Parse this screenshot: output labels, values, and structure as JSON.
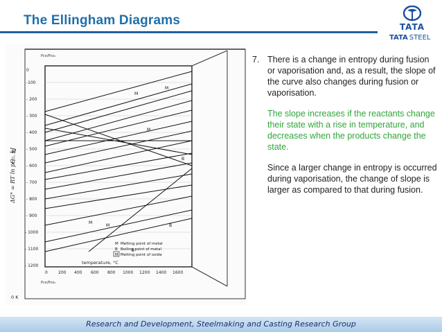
{
  "slide": {
    "title": "The Ellingham Diagrams",
    "footer": "Research and Development, Steelmaking and Casting Research Group"
  },
  "logo": {
    "word_top": "TATA",
    "word_bottom_1": "TATA",
    "word_bottom_2": "STEEL"
  },
  "point": {
    "number": "7.",
    "text": "There is a change in entropy during fusion or vaporisation and, as a result, the slope of the curve also changes during fusion or vaporisation."
  },
  "green_paragraph": "The slope increases if the reactants change their state with a rise in temperature, and decreases when the products change the state.",
  "dark_paragraph": "Since a larger change in entropy is occurred during vaporisation, the change of slope is larger as compared to that during fusion.",
  "diagram": {
    "y_axis_label": "ΔG° = RT ln pO₂, kJ",
    "x_axis_label": "temperature, °C",
    "left_marks": [
      "H",
      "C"
    ],
    "zero_k": "0 K",
    "top_label": "Pco/Pco₂",
    "bottom_label": "Pco/Pco₂",
    "y_ticks": [
      "0",
      "-100",
      "- 200",
      "- 300",
      "- 400",
      "- 500",
      "- 600",
      "- 700",
      "- 800",
      "- 900",
      "- 1000",
      "- 1100",
      "- 1200"
    ],
    "x_ticks": [
      "0",
      "200",
      "400",
      "600",
      "800",
      "1000",
      "1200",
      "1400",
      "1600"
    ],
    "legend": [
      {
        "symbol": "M",
        "text": "Melting point of metal"
      },
      {
        "symbol": "B",
        "text": "Boiling point of metal"
      },
      {
        "symbol": "M",
        "text": "Melting point of oxide"
      }
    ]
  }
}
